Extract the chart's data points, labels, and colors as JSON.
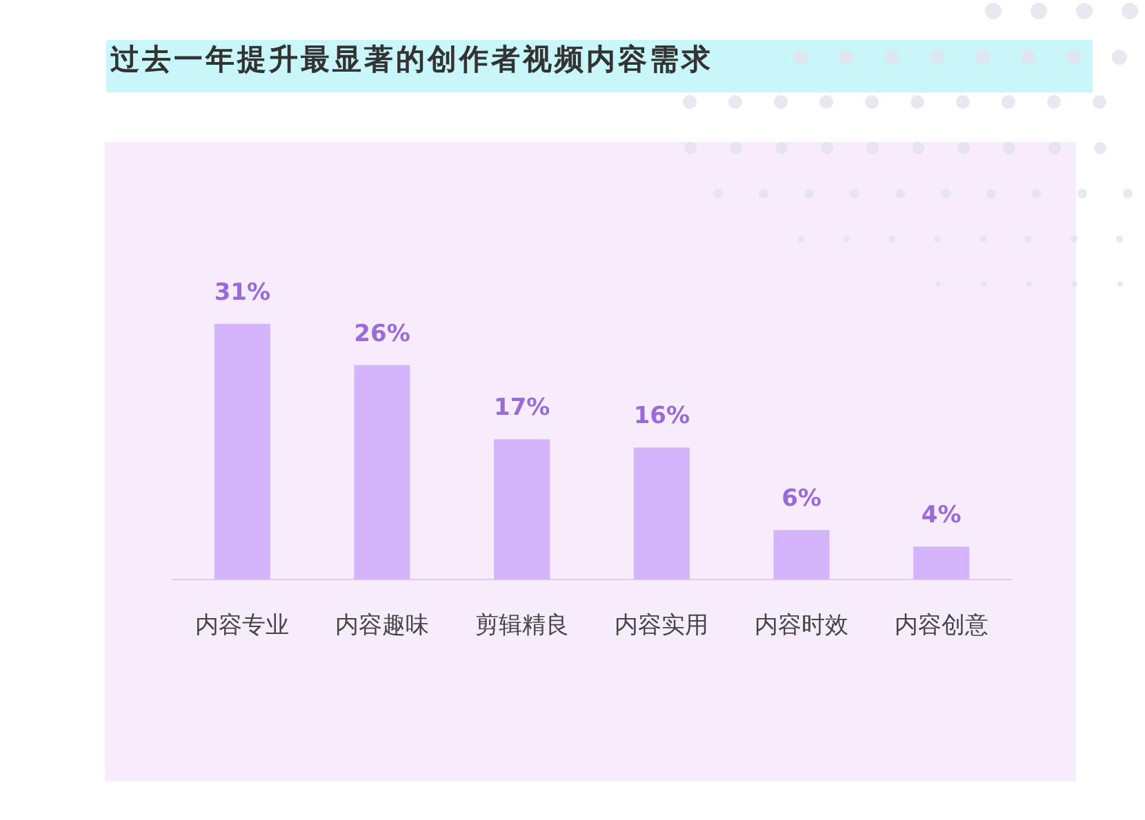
{
  "chart_data": {
    "type": "bar",
    "title": "过去一年提升最显著的创作者视频内容需求",
    "categories": [
      "内容专业",
      "内容趣味",
      "剪辑精良",
      "内容实用",
      "内容时效",
      "内容创意"
    ],
    "values": [
      31,
      26,
      17,
      16,
      6,
      4
    ],
    "value_labels": [
      "31%",
      "26%",
      "17%",
      "16%",
      "6%",
      "4%"
    ],
    "color": "#d4b4fa",
    "tick_labels": "x"
  }
}
